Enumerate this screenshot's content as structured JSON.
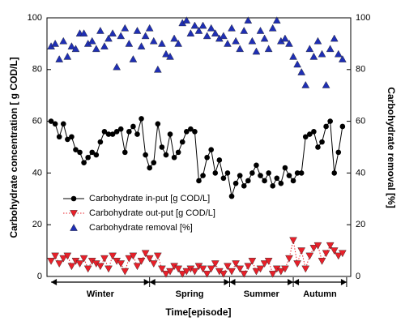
{
  "chart_data": {
    "type": "line",
    "x_label": "Time[episode]",
    "y_label": "Carbohydrate concentration [ g COD/L]",
    "y2_label": "Carbohydrate removal [%]",
    "x": [
      1,
      2,
      3,
      4,
      5,
      6,
      7,
      8,
      9,
      10,
      11,
      12,
      13,
      14,
      15,
      16,
      17,
      18,
      19,
      20,
      21,
      22,
      23,
      24,
      25,
      26,
      27,
      28,
      29,
      30,
      31,
      32,
      33,
      34,
      35,
      36,
      37,
      38,
      39,
      40,
      41,
      42,
      43,
      44,
      45,
      46,
      47,
      48,
      49,
      50,
      51,
      52,
      53,
      54,
      55,
      56,
      57,
      58,
      59,
      60,
      61,
      62,
      63,
      64,
      65,
      66,
      67,
      68,
      69,
      70,
      71,
      72
    ],
    "xlim": [
      0,
      74
    ],
    "ylim": [
      0,
      100
    ],
    "yticks": [
      0,
      20,
      40,
      60,
      80,
      100
    ],
    "y2lim": [
      0,
      100
    ],
    "y2ticks": [
      0,
      20,
      40,
      60,
      80,
      100
    ],
    "seasons": [
      {
        "name": "Winter",
        "start": 1,
        "end": 25
      },
      {
        "name": "Spring",
        "start": 25,
        "end": 44.5
      },
      {
        "name": "Summer",
        "start": 44.5,
        "end": 60
      },
      {
        "name": "Autumn",
        "start": 60,
        "end": 73
      }
    ],
    "series": [
      {
        "name": "Carbohydrate in-put [g COD/L]",
        "color": "#000000",
        "marker": "circle",
        "line": "solid",
        "values": [
          60,
          59,
          54,
          59,
          53,
          54,
          49,
          48,
          44,
          46,
          48,
          47,
          52,
          56,
          55,
          55,
          56,
          57,
          48,
          56,
          58,
          55,
          61,
          47,
          42,
          44,
          59,
          50,
          47,
          55,
          46,
          48,
          52,
          56,
          57,
          56,
          37,
          39,
          46,
          49,
          40,
          45,
          38,
          40,
          31,
          36,
          39,
          35,
          37,
          40,
          43,
          39,
          37,
          40,
          35,
          38,
          36,
          42,
          39,
          37,
          40,
          40,
          54,
          55,
          56,
          50,
          52,
          58,
          60,
          40,
          48,
          58
        ]
      },
      {
        "name": "Carbohydrate out-put [g COD/L]",
        "color": "#e8202a",
        "marker": "triangle-down",
        "line": "dotted",
        "values": [
          6,
          8,
          5,
          7,
          8,
          4,
          6,
          5,
          7,
          3,
          6,
          5,
          4,
          7,
          3,
          8,
          6,
          5,
          2,
          7,
          8,
          4,
          6,
          9,
          7,
          5,
          8,
          3,
          1,
          2,
          4,
          3,
          1,
          2,
          3,
          2,
          4,
          3,
          1,
          3,
          5,
          2,
          1,
          4,
          2,
          5,
          3,
          1,
          4,
          6,
          2,
          3,
          5,
          6,
          1,
          3,
          2,
          3,
          7,
          14,
          5,
          10,
          3,
          8,
          11,
          12,
          6,
          9,
          12,
          10,
          8,
          9
        ]
      },
      {
        "name": "Carbohydrate removal [%]",
        "color": "#1f2fb4",
        "marker": "triangle-up",
        "line": "none",
        "axis": "y2",
        "values": [
          89,
          90,
          84,
          91,
          85,
          89,
          88,
          94,
          94,
          90,
          91,
          88,
          95,
          89,
          92,
          94,
          81,
          93,
          96,
          90,
          84,
          95,
          89,
          93,
          96,
          91,
          80,
          90,
          86,
          85,
          92,
          90,
          98,
          99,
          94,
          97,
          95,
          97,
          93,
          96,
          94,
          92,
          93,
          90,
          96,
          91,
          88,
          95,
          99,
          91,
          87,
          95,
          92,
          88,
          96,
          99,
          91,
          92,
          90,
          85,
          82,
          79,
          74,
          88,
          85,
          91,
          86,
          74,
          88,
          92,
          86,
          84
        ]
      }
    ]
  }
}
